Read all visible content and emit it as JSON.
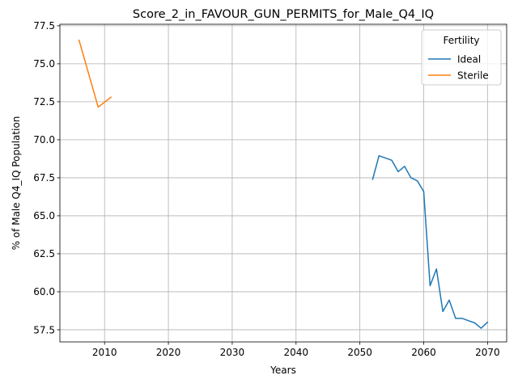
{
  "chart_data": {
    "type": "line",
    "title": "Score_2_in_FAVOUR_GUN_PERMITS_for_Male_Q4_IQ",
    "xlabel": "Years",
    "ylabel": "% of Male Q4_IQ Population",
    "xlim": [
      2003,
      2073
    ],
    "ylim": [
      56.7,
      77.6
    ],
    "xticks": [
      2010,
      2020,
      2030,
      2040,
      2050,
      2060,
      2070
    ],
    "yticks": [
      57.5,
      60.0,
      62.5,
      65.0,
      67.5,
      70.0,
      72.5,
      75.0,
      77.5
    ],
    "ytick_labels": [
      "57.5",
      "60.0",
      "62.5",
      "65.0",
      "67.5",
      "70.0",
      "72.5",
      "75.0",
      "77.5"
    ],
    "grid": true,
    "legend": {
      "title": "Fertility",
      "position": "top-right"
    },
    "series": [
      {
        "name": "Ideal",
        "color": "#1f77b4",
        "x": [
          2052,
          2053,
          2054,
          2055,
          2056,
          2057,
          2058,
          2059,
          2060,
          2061,
          2062,
          2063,
          2064,
          2065,
          2066,
          2067,
          2068,
          2069,
          2070
        ],
        "y": [
          67.4,
          68.95,
          68.8,
          68.65,
          67.9,
          68.25,
          67.5,
          67.3,
          66.6,
          60.4,
          61.5,
          58.7,
          59.45,
          58.25,
          58.25,
          58.1,
          57.95,
          57.6,
          58.0
        ]
      },
      {
        "name": "Sterile",
        "color": "#ff7f0e",
        "x": [
          2006,
          2009,
          2011
        ],
        "y": [
          76.55,
          72.15,
          72.8
        ]
      }
    ]
  }
}
